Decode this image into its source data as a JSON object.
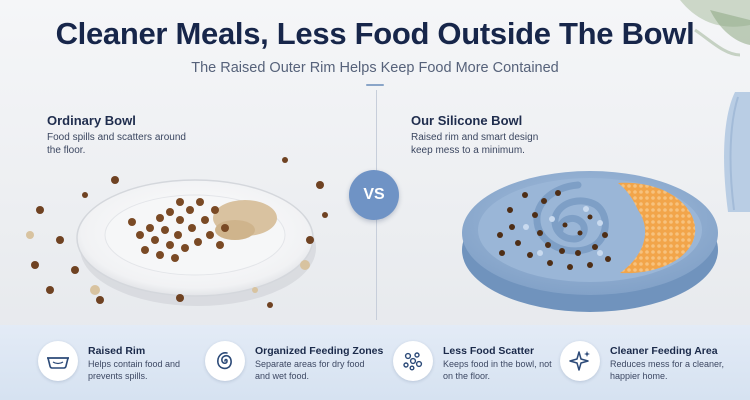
{
  "header": {
    "title": "Cleaner Meals, Less Food Outside The Bowl",
    "subtitle": "The Raised Outer Rim Helps Keep Food More Contained"
  },
  "comparison": {
    "left": {
      "title": "Ordinary Bowl",
      "description": "Food spills and scatters around the floor."
    },
    "right": {
      "title": "Our Silicone Bowl",
      "description": "Raised rim and smart design keep mess to a minimum."
    },
    "vs_label": "VS"
  },
  "features": [
    {
      "icon": "raised-rim-dish-icon",
      "title": "Raised Rim",
      "description": "Helps contain food and prevents spills."
    },
    {
      "icon": "spiral-zones-icon",
      "title": "Organized Feeding Zones",
      "description": "Separate areas for dry food and wet food."
    },
    {
      "icon": "scatter-dots-icon",
      "title": "Less Food Scatter",
      "description": "Keeps food in the bowl, not on the floor."
    },
    {
      "icon": "sparkle-clean-icon",
      "title": "Cleaner Feeding Area",
      "description": "Reduces mess for a cleaner, happier home."
    }
  ],
  "colors": {
    "accent": "#6f93c5",
    "title": "#17264a",
    "bowl_blue": "#8fb0d4",
    "kibble": "#7a4a25",
    "wet_food": "#f0a048",
    "feature_bar": "#dbe5f3"
  }
}
